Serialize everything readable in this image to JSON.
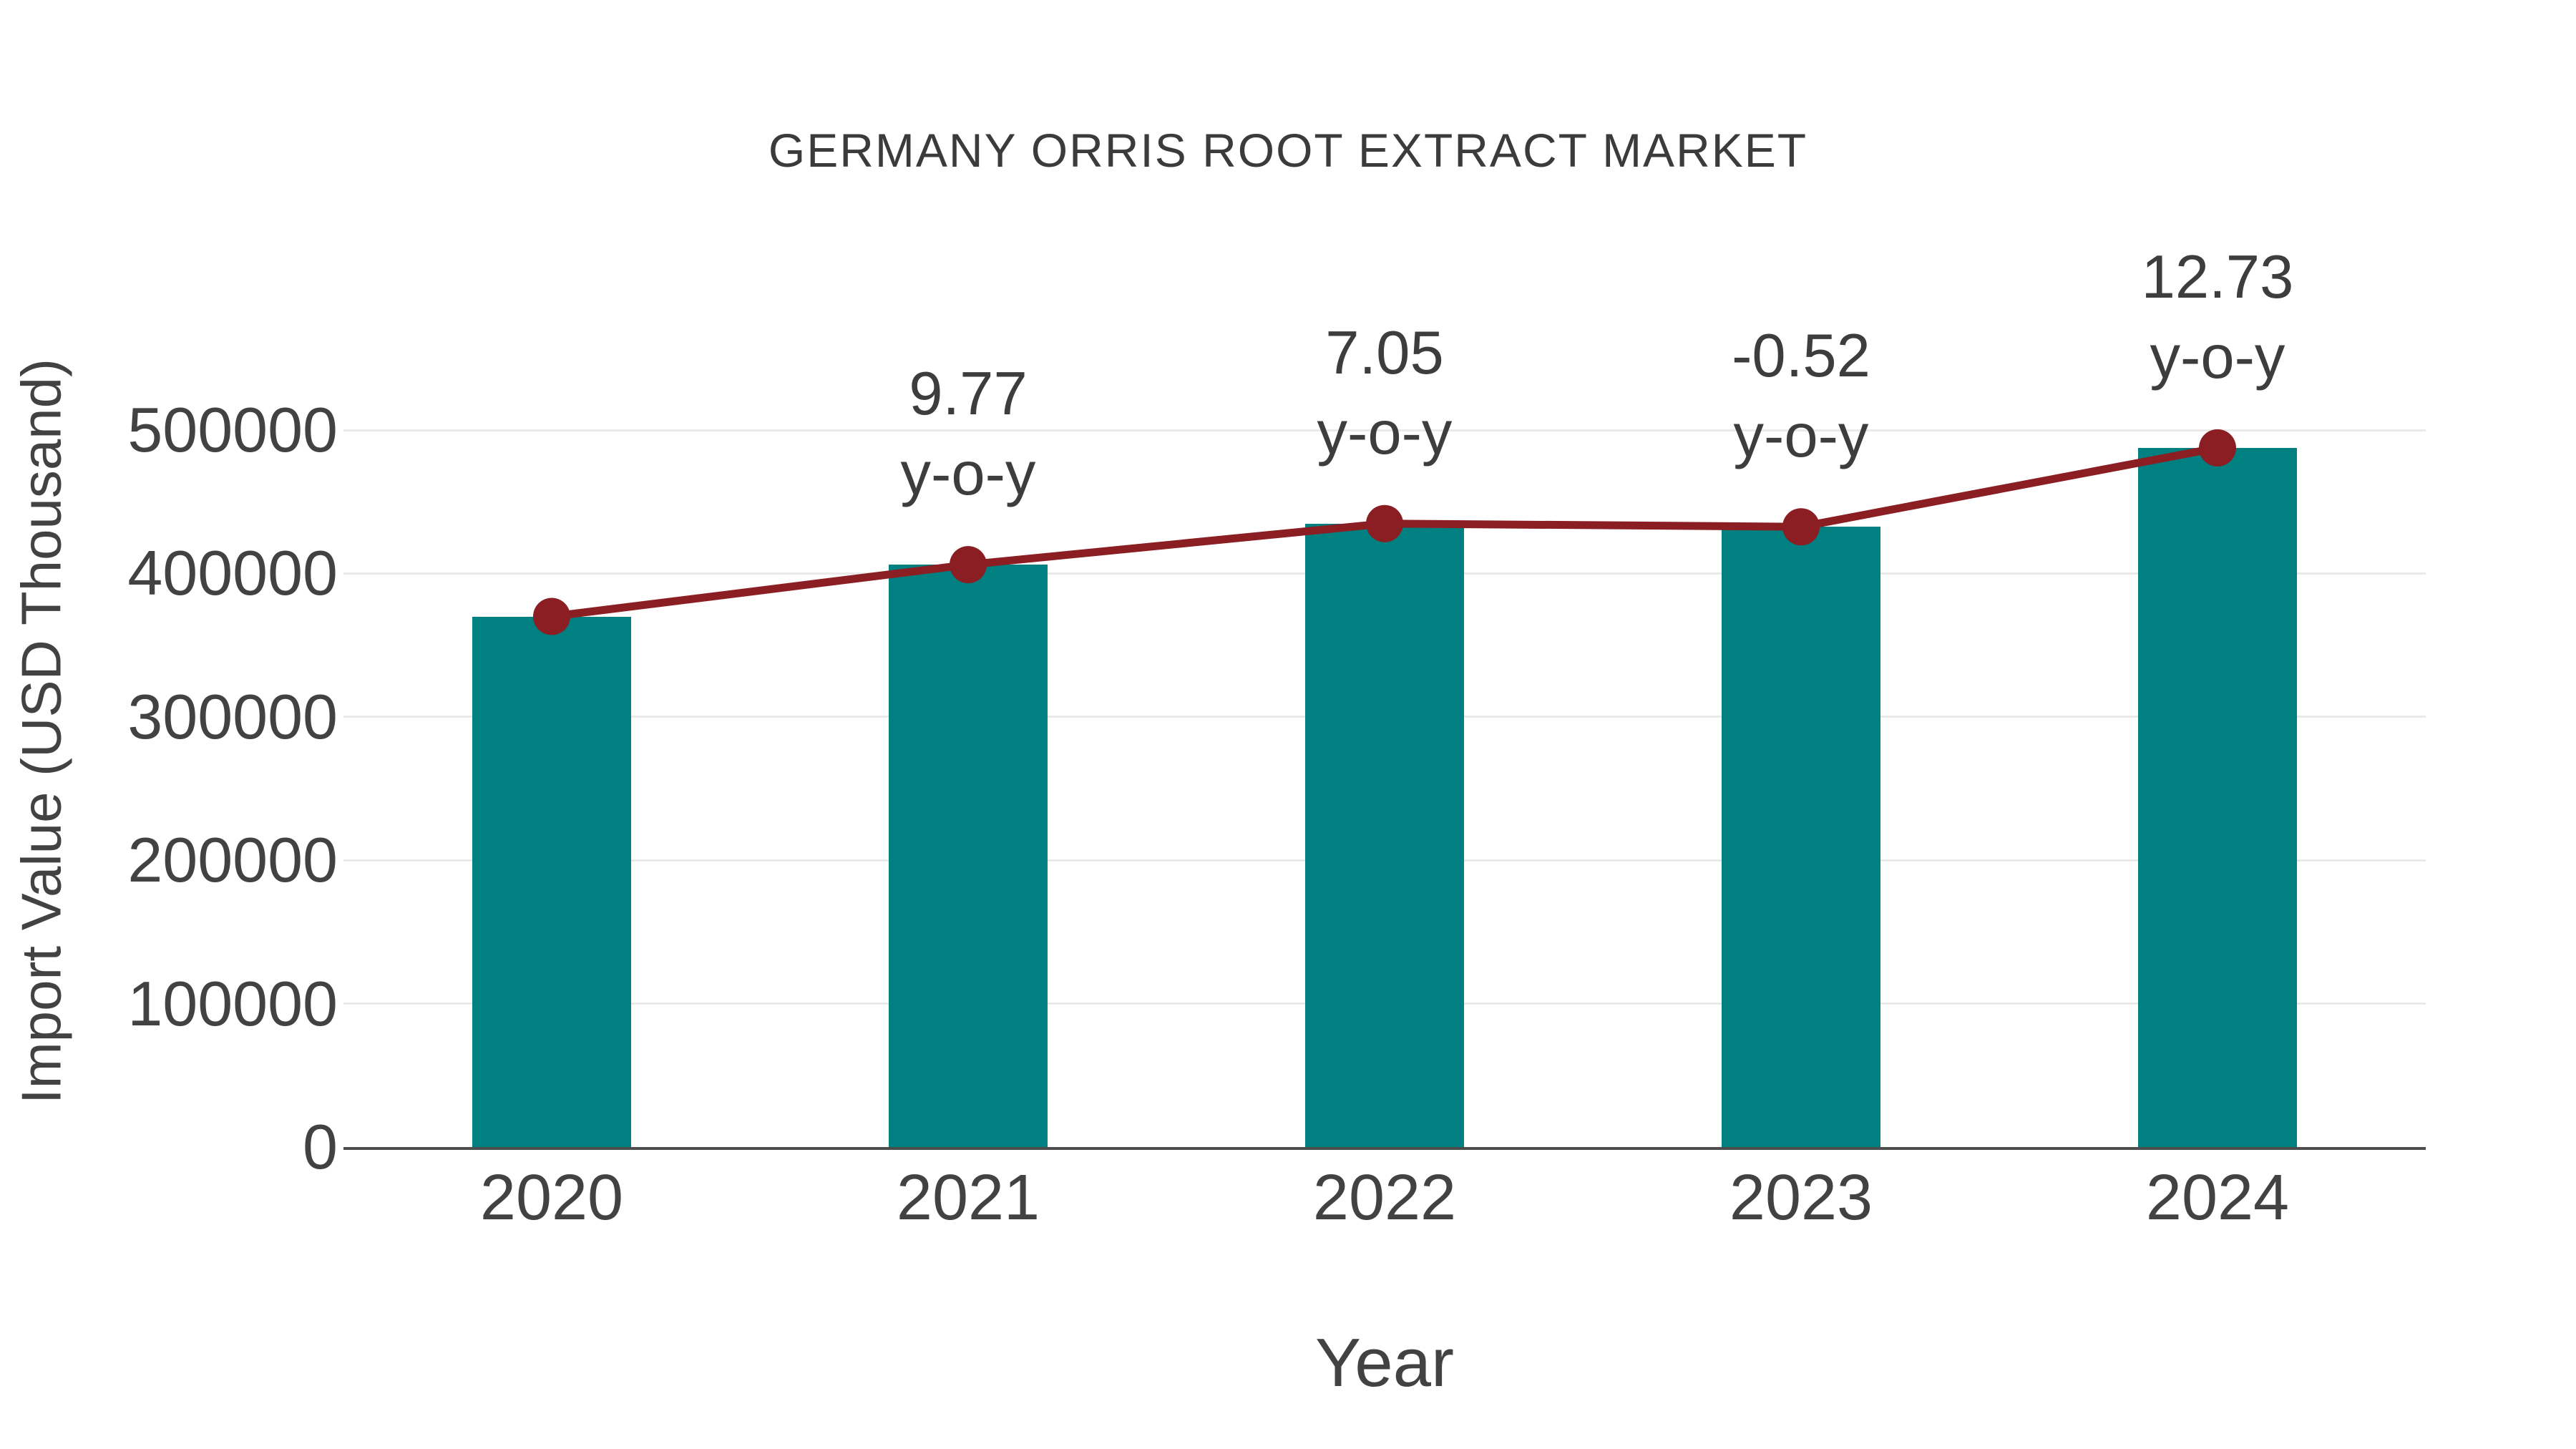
{
  "chart_data": {
    "type": "bar",
    "title": "GERMANY ORRIS ROOT EXTRACT MARKET",
    "xlabel": "Year",
    "ylabel": "Import Value (USD Thousand)",
    "categories": [
      "2020",
      "2021",
      "2022",
      "2023",
      "2024"
    ],
    "series": [
      {
        "name": "Import Value (USD Thousand)",
        "type": "bar",
        "values": [
          370000,
          406149,
          434783,
          432522,
          487582
        ]
      },
      {
        "name": "y-o-y growth marker line",
        "type": "line",
        "values": [
          370000,
          406149,
          434783,
          432522,
          487582
        ],
        "yoy_percent": [
          null,
          9.77,
          7.05,
          -0.52,
          12.73
        ]
      }
    ],
    "annotations": [
      {
        "category": "2021",
        "line1": "9.77",
        "line2": "y-o-y"
      },
      {
        "category": "2022",
        "line1": "7.05",
        "line2": "y-o-y"
      },
      {
        "category": "2023",
        "line1": "-0.52",
        "line2": "y-o-y"
      },
      {
        "category": "2024",
        "line1": "12.73",
        "line2": "y-o-y"
      }
    ],
    "yticks": [
      0,
      100000,
      200000,
      300000,
      400000,
      500000
    ],
    "ylim": [
      0,
      500000
    ],
    "grid": true,
    "legend_position": "none",
    "colors": {
      "bar": "#008080",
      "line": "#8b1e23",
      "marker": "#8b1e23",
      "text": "#3d3d3d",
      "axis": "#4d4d4d",
      "gridline": "#eaeaea",
      "background": "#ffffff"
    }
  }
}
